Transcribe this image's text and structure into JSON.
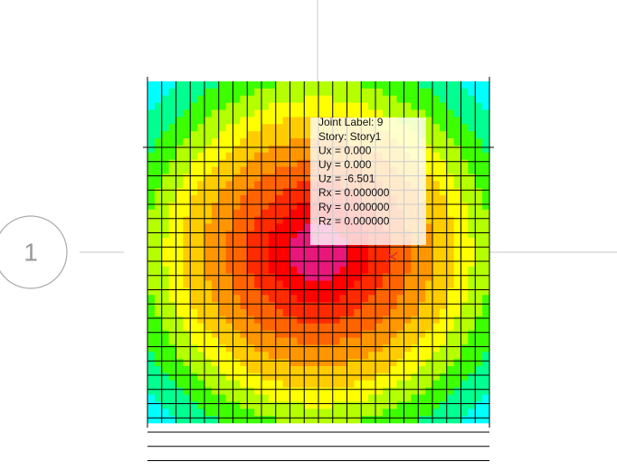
{
  "grid_bubble": {
    "label": "1"
  },
  "tooltip": {
    "lines": [
      "Joint Label: 9",
      "Story: Story1",
      "Ux =  0.000",
      "Uy =  0.000",
      "Uz = -6.501",
      "Rx =  0.000000",
      "Ry =  0.000000",
      "Rz =  0.000000"
    ]
  }
}
